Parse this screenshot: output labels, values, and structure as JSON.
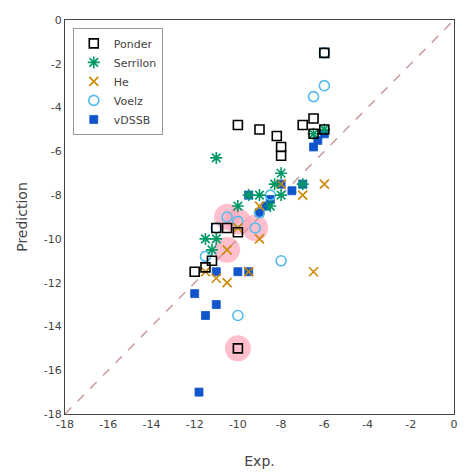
{
  "chart_data": {
    "type": "scatter",
    "xlabel": "Exp.",
    "ylabel": "Prediction",
    "xlim": [
      -18,
      0
    ],
    "ylim": [
      -18,
      0
    ],
    "xticks": [
      -18,
      -16,
      -14,
      -12,
      -10,
      -8,
      -6,
      -4,
      -2,
      0
    ],
    "yticks": [
      -18,
      -16,
      -14,
      -12,
      -10,
      -8,
      -6,
      -4,
      -2,
      0
    ],
    "grid": false,
    "legend": "upper left",
    "reference_line": {
      "x": [
        -18,
        0
      ],
      "values": [
        -18,
        0
      ],
      "color": "#cc9999",
      "line_style": "dashed"
    },
    "highlights": [
      {
        "x": -10.0,
        "y": -9.2,
        "r": 0.6
      },
      {
        "x": -10.5,
        "y": -9.0,
        "r": 0.6
      },
      {
        "x": -9.2,
        "y": -9.5,
        "r": 0.6
      },
      {
        "x": -10.5,
        "y": -10.5,
        "r": 0.6
      },
      {
        "x": -10.0,
        "y": -15.0,
        "r": 0.6
      }
    ],
    "highlight_color": "#ffaabb",
    "series": [
      {
        "name": "vDSSB",
        "color": "#1155cc",
        "marker": "square",
        "x": [
          -6.0,
          -6.3,
          -6.5,
          -7.0,
          -7.5,
          -8.0,
          -8.5,
          -8.7,
          -9.0,
          -9.5,
          -9.5,
          -10.0,
          -11.0,
          -11.0,
          -11.5,
          -12.0,
          -11.8
        ],
        "values": [
          -5.2,
          -5.5,
          -5.8,
          -7.5,
          -7.8,
          -7.5,
          -8.2,
          -8.5,
          -8.8,
          -8.0,
          -11.5,
          -11.5,
          -11.5,
          -13.0,
          -13.5,
          -12.5,
          -17.0
        ]
      },
      {
        "name": "Voelz",
        "color": "#55bbee",
        "marker": "circle-open",
        "x": [
          -6.0,
          -6.0,
          -6.5,
          -10.0,
          -10.5,
          -9.0,
          -8.5,
          -9.2,
          -11.0,
          -10.0,
          -11.5,
          -8.0
        ],
        "values": [
          -1.5,
          -3.0,
          -3.5,
          -9.2,
          -9.0,
          -8.8,
          -8.0,
          -9.5,
          -9.5,
          -13.5,
          -10.8,
          -11.0
        ]
      },
      {
        "name": "He",
        "color": "#cc8800",
        "marker": "x",
        "x": [
          -11.5,
          -11.0,
          -10.5,
          -10.0,
          -9.0,
          -9.0,
          -9.5,
          -8.0,
          -7.0,
          -6.0,
          -6.5,
          -10.5
        ],
        "values": [
          -11.5,
          -11.8,
          -10.5,
          -9.5,
          -8.5,
          -10.0,
          -11.5,
          -7.5,
          -8.0,
          -7.5,
          -11.5,
          -12.0
        ]
      },
      {
        "name": "Serrilon",
        "color": "#009966",
        "marker": "asterisk",
        "x": [
          -11.0,
          -8.0,
          -8.3,
          -9.0,
          -9.5,
          -10.0,
          -8.0,
          -8.5,
          -6.0,
          -6.5,
          -7.0,
          -11.0,
          -11.2,
          -11.5
        ],
        "values": [
          -6.3,
          -7.0,
          -7.5,
          -8.0,
          -8.0,
          -8.5,
          -8.0,
          -8.5,
          -5.0,
          -5.2,
          -7.5,
          -10.0,
          -10.5,
          -10.0
        ]
      },
      {
        "name": "Ponder",
        "color": "black",
        "marker": "square-open",
        "x": [
          -6.0,
          -6.5,
          -6.0,
          -6.5,
          -7.0,
          -8.0,
          -8.2,
          -8.0,
          -9.0,
          -10.0,
          -10.5,
          -11.0,
          -11.2,
          -11.5,
          -12.0,
          -10.0,
          -10.0
        ],
        "values": [
          -1.5,
          -4.5,
          -5.0,
          -5.2,
          -4.8,
          -5.8,
          -5.3,
          -6.2,
          -5.0,
          -4.8,
          -9.5,
          -9.5,
          -11.0,
          -11.3,
          -11.5,
          -9.7,
          -15.0
        ]
      }
    ]
  }
}
